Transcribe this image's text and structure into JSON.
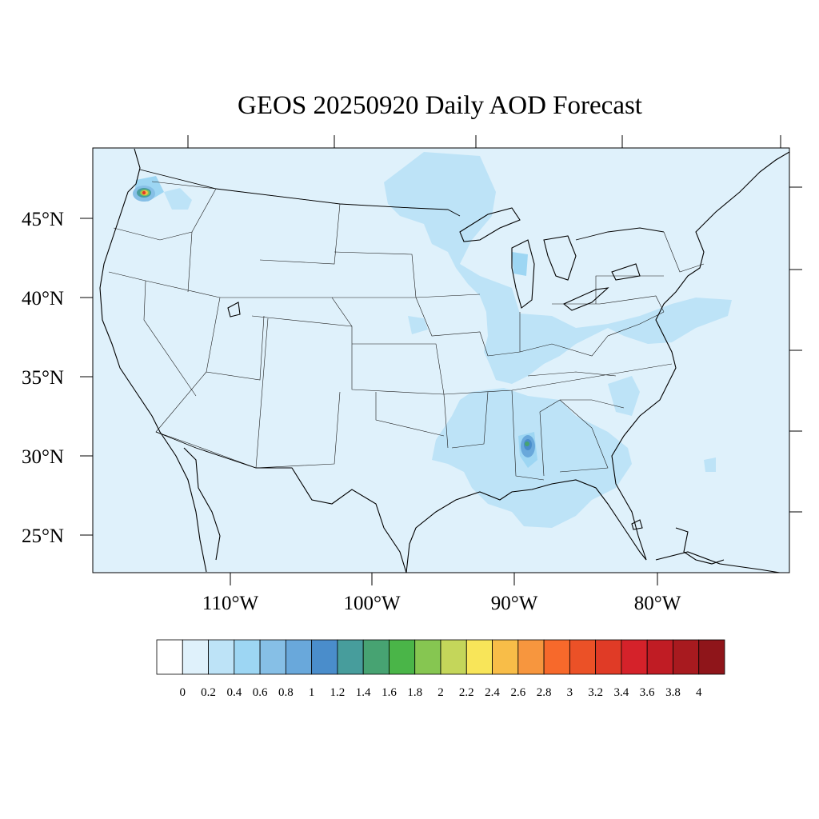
{
  "title": "GEOS 20250920 Daily AOD Forecast",
  "map": {
    "projection": "lambert-conformal",
    "region": "CONUS",
    "background_color": "#dff1fb",
    "coast_color": "#000000",
    "lat_labels": [
      "45°N",
      "40°N",
      "35°N",
      "30°N",
      "25°N"
    ],
    "lon_labels": [
      "110°W",
      "100°W",
      "90°W",
      "80°W"
    ]
  },
  "plumes": [
    {
      "name": "washington-smoke-core",
      "value": 2.8,
      "color": "#f7692b",
      "lat": 47.3,
      "lon": -122.3
    },
    {
      "name": "alabama-hotspot",
      "value": 1.4,
      "color": "#47a372",
      "lat": 32.2,
      "lon": -88.0
    },
    {
      "name": "eastern-haze",
      "value": 0.3,
      "color": "#bde3f7"
    }
  ],
  "colorbar": {
    "labels": [
      "0",
      "0.2",
      "0.4",
      "0.6",
      "0.8",
      "1",
      "1.2",
      "1.4",
      "1.6",
      "1.8",
      "2",
      "2.2",
      "2.4",
      "2.6",
      "2.8",
      "3",
      "3.2",
      "3.4",
      "3.6",
      "3.8",
      "4"
    ],
    "colors": [
      "#ffffff",
      "#dff1fb",
      "#bde3f7",
      "#9dd6f3",
      "#86bfe6",
      "#69a8db",
      "#4a8dcb",
      "#479d9c",
      "#47a372",
      "#4ab548",
      "#86c651",
      "#c4d65a",
      "#f8e559",
      "#f8bd48",
      "#f7963e",
      "#f7692b",
      "#eb5127",
      "#e03b26",
      "#d5222a",
      "#c01c24",
      "#a81a1f",
      "#8f151a"
    ]
  }
}
